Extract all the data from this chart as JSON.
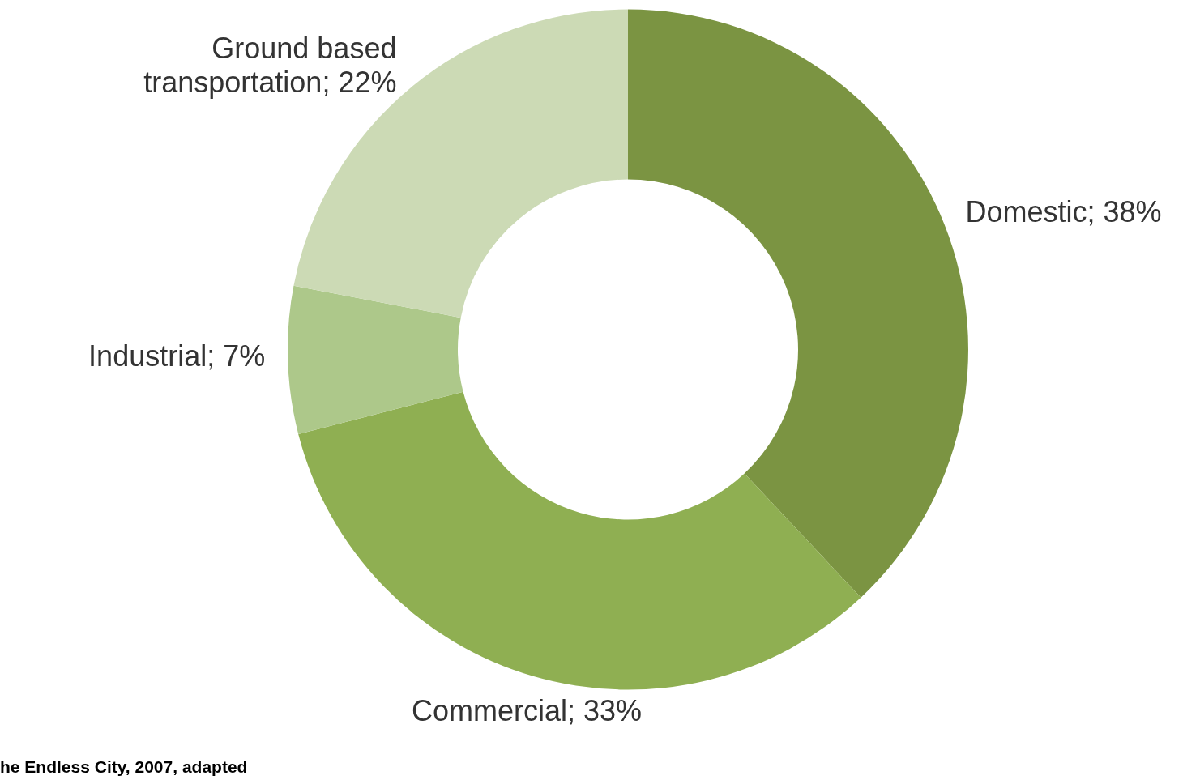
{
  "chart_data": {
    "type": "donut",
    "categories": [
      "Domestic",
      "Commercial",
      "Industrial",
      "Ground based transportation"
    ],
    "values": [
      38,
      33,
      7,
      22
    ],
    "value_labels": [
      "38%",
      "33%",
      "7%",
      "22%"
    ],
    "colors": [
      "#7b9442",
      "#8faf52",
      "#adc88a",
      "#ccdab5"
    ],
    "legend": false,
    "annotations": [
      "he Endless City, 2007, adapted"
    ]
  }
}
